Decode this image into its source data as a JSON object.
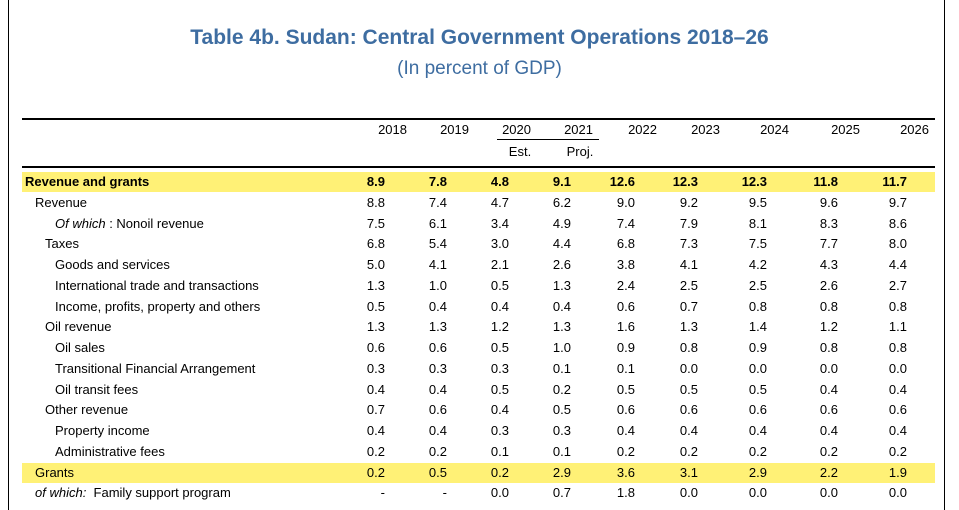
{
  "title": "Table 4b. Sudan: Central Government Operations 2018–26",
  "subtitle": "(In percent of GDP)",
  "years": [
    "2018",
    "2019",
    "2020",
    "2021",
    "2022",
    "2023",
    "2024",
    "2025",
    "2026"
  ],
  "notes": {
    "est": "Est.",
    "proj": "Proj."
  },
  "rows": [
    {
      "label": "Revenue and grants",
      "values": [
        "8.9",
        "7.8",
        "4.8",
        "9.1",
        "12.6",
        "12.3",
        "12.3",
        "11.8",
        "11.7"
      ]
    },
    {
      "label": "Revenue",
      "values": [
        "8.8",
        "7.4",
        "4.7",
        "6.2",
        "9.0",
        "9.2",
        "9.5",
        "9.6",
        "9.7"
      ]
    },
    {
      "label_italic": "Of which",
      "label": " : Nonoil revenue",
      "values": [
        "7.5",
        "6.1",
        "3.4",
        "4.9",
        "7.4",
        "7.9",
        "8.1",
        "8.3",
        "8.6"
      ]
    },
    {
      "label": "Taxes",
      "values": [
        "6.8",
        "5.4",
        "3.0",
        "4.4",
        "6.8",
        "7.3",
        "7.5",
        "7.7",
        "8.0"
      ]
    },
    {
      "label": "Goods and services",
      "values": [
        "5.0",
        "4.1",
        "2.1",
        "2.6",
        "3.8",
        "4.1",
        "4.2",
        "4.3",
        "4.4"
      ]
    },
    {
      "label": "International trade and transactions",
      "values": [
        "1.3",
        "1.0",
        "0.5",
        "1.3",
        "2.4",
        "2.5",
        "2.5",
        "2.6",
        "2.7"
      ]
    },
    {
      "label": "Income, profits, property and others",
      "values": [
        "0.5",
        "0.4",
        "0.4",
        "0.4",
        "0.6",
        "0.7",
        "0.8",
        "0.8",
        "0.8"
      ]
    },
    {
      "label": "Oil revenue",
      "values": [
        "1.3",
        "1.3",
        "1.2",
        "1.3",
        "1.6",
        "1.3",
        "1.4",
        "1.2",
        "1.1"
      ]
    },
    {
      "label": "Oil sales",
      "values": [
        "0.6",
        "0.6",
        "0.5",
        "1.0",
        "0.9",
        "0.8",
        "0.9",
        "0.8",
        "0.8"
      ]
    },
    {
      "label": "Transitional Financial Arrangement",
      "values": [
        "0.3",
        "0.3",
        "0.3",
        "0.1",
        "0.1",
        "0.0",
        "0.0",
        "0.0",
        "0.0"
      ]
    },
    {
      "label": "Oil transit fees",
      "values": [
        "0.4",
        "0.4",
        "0.5",
        "0.2",
        "0.5",
        "0.5",
        "0.5",
        "0.4",
        "0.4"
      ]
    },
    {
      "label": "Other revenue",
      "values": [
        "0.7",
        "0.6",
        "0.4",
        "0.5",
        "0.6",
        "0.6",
        "0.6",
        "0.6",
        "0.6"
      ]
    },
    {
      "label": "Property income",
      "values": [
        "0.4",
        "0.4",
        "0.3",
        "0.3",
        "0.4",
        "0.4",
        "0.4",
        "0.4",
        "0.4"
      ]
    },
    {
      "label": "Administrative fees",
      "values": [
        "0.2",
        "0.2",
        "0.1",
        "0.1",
        "0.2",
        "0.2",
        "0.2",
        "0.2",
        "0.2"
      ]
    },
    {
      "label": "Grants",
      "values": [
        "0.2",
        "0.5",
        "0.2",
        "2.9",
        "3.6",
        "3.1",
        "2.9",
        "2.2",
        "1.9"
      ]
    },
    {
      "label_italic": "of which:",
      "label": "  Family support program",
      "values": [
        "-",
        "-",
        "0.0",
        "0.7",
        "1.8",
        "0.0",
        "0.0",
        "0.0",
        "0.0"
      ]
    }
  ]
}
